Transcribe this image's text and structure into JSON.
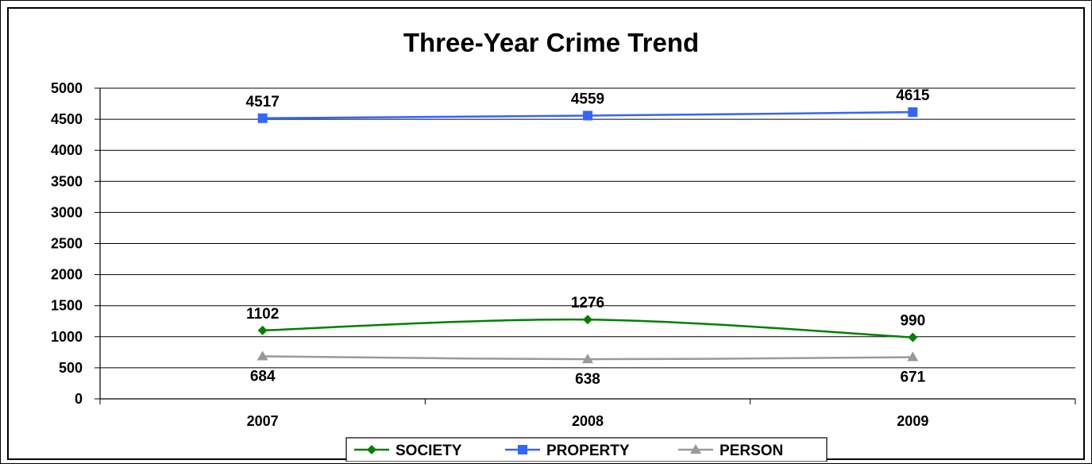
{
  "chart_data": {
    "type": "line",
    "title": "Three-Year Crime Trend",
    "xlabel": "",
    "ylabel": "",
    "categories": [
      "2007",
      "2008",
      "2009"
    ],
    "ylim": [
      0,
      5000
    ],
    "yticks": [
      0,
      500,
      1000,
      1500,
      2000,
      2500,
      3000,
      3500,
      4000,
      4500,
      5000
    ],
    "grid": true,
    "legend_position": "bottom",
    "series": [
      {
        "name": "SOCIETY",
        "values": [
          1102,
          1276,
          990
        ],
        "color": "#008000",
        "marker": "diamond",
        "labels": [
          "1102",
          "1276",
          "990"
        ],
        "label_placement": "above"
      },
      {
        "name": "PROPERTY",
        "values": [
          4517,
          4559,
          4615
        ],
        "color": "#3366ff",
        "marker": "square",
        "labels": [
          "4517",
          "4559",
          "4615"
        ],
        "label_placement": "above"
      },
      {
        "name": "PERSON",
        "values": [
          684,
          638,
          671
        ],
        "color": "#999999",
        "marker": "triangle",
        "labels": [
          "684",
          "638",
          "671"
        ],
        "label_placement": "below"
      }
    ]
  }
}
